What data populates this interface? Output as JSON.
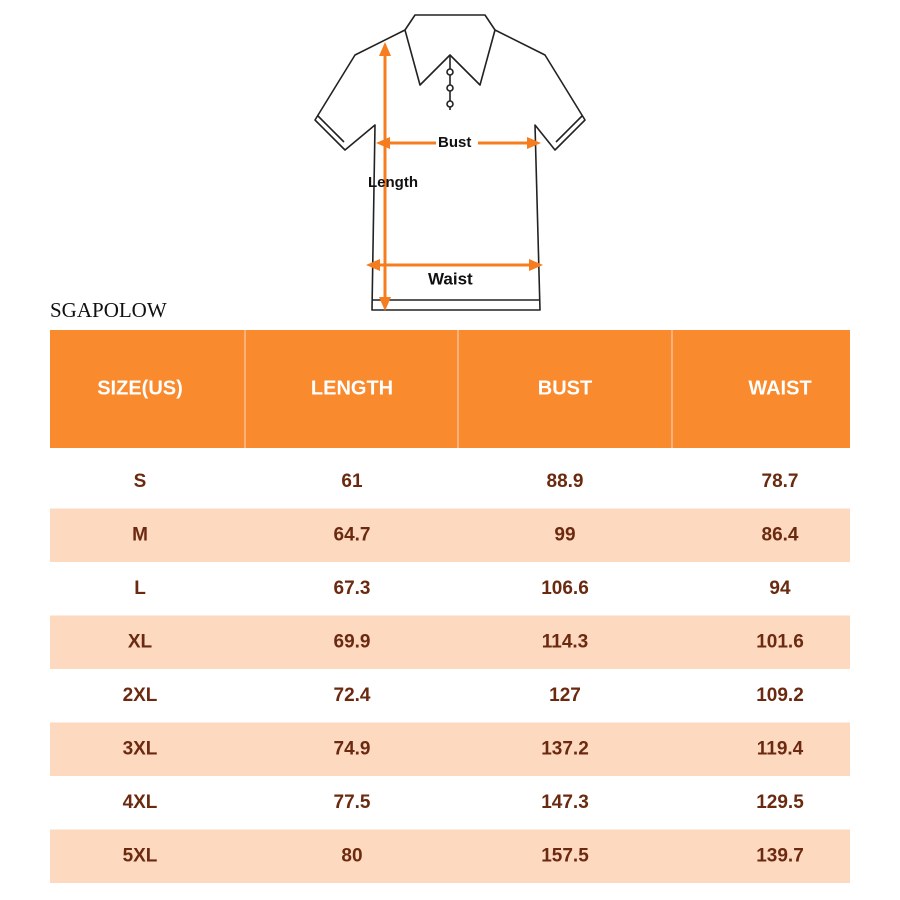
{
  "diagram": {
    "labels": {
      "bust": "Bust",
      "length": "Length",
      "waist": "Waist"
    }
  },
  "brand": "SGAPOLOW",
  "table": {
    "header": [
      "SIZE(US)",
      "LENGTH",
      "BUST",
      "WAIST"
    ],
    "rows": [
      [
        "S",
        61,
        88.9,
        78.7
      ],
      [
        "M",
        64.7,
        99,
        86.4
      ],
      [
        "L",
        67.3,
        106.6,
        94
      ],
      [
        "XL",
        69.9,
        114.3,
        101.6
      ],
      [
        "2XL",
        72.4,
        127,
        109.2
      ],
      [
        "3XL",
        74.9,
        137.2,
        119.4
      ],
      [
        "4XL",
        77.5,
        147.3,
        129.5
      ],
      [
        "5XL",
        80,
        157.5,
        139.7
      ]
    ]
  }
}
